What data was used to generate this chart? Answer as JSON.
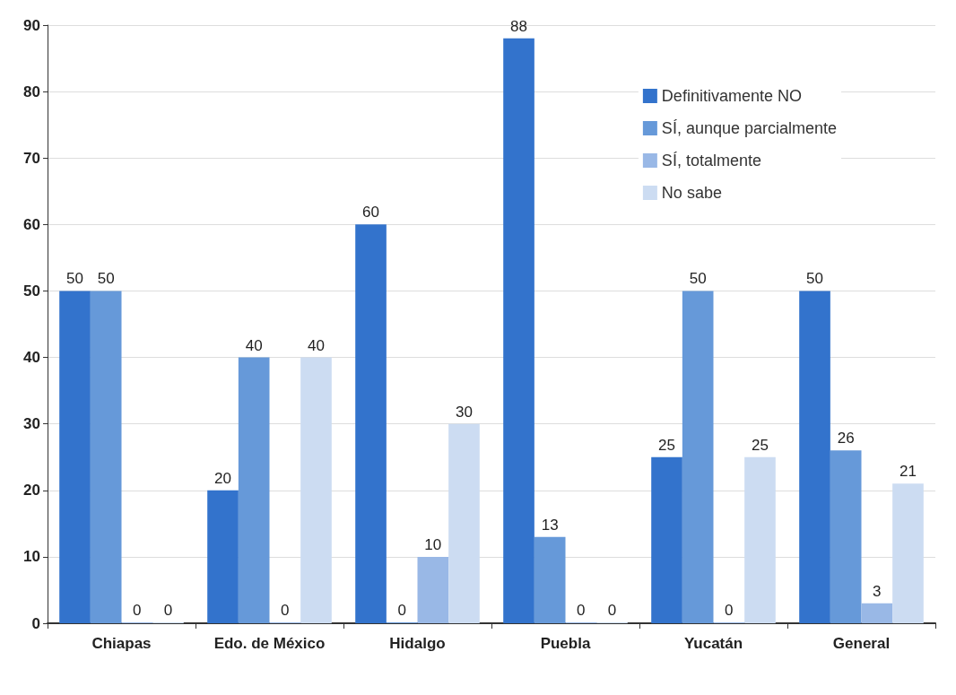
{
  "chart_data": {
    "type": "bar",
    "categories": [
      "Chiapas",
      "Edo. de México",
      "Hidalgo",
      "Puebla",
      "Yucatán",
      "General"
    ],
    "series": [
      {
        "name": "Definitivamente NO",
        "color": "#3373cc",
        "values": [
          50,
          20,
          60,
          88,
          25,
          50
        ]
      },
      {
        "name": "SÍ, aunque parcialmente",
        "color": "#6699d9",
        "values": [
          50,
          40,
          0,
          13,
          50,
          26
        ]
      },
      {
        "name": "SÍ, totalmente",
        "color": "#99b8e6",
        "values": [
          0,
          0,
          10,
          0,
          0,
          3
        ]
      },
      {
        "name": "No sabe",
        "color": "#ccdcf2",
        "values": [
          0,
          40,
          30,
          0,
          25,
          21
        ]
      }
    ],
    "ylim": [
      0,
      90
    ],
    "yticks": [
      0,
      10,
      20,
      30,
      40,
      50,
      60,
      70,
      80,
      90
    ],
    "grid": "y",
    "legend": "top right",
    "data_labels": true
  }
}
